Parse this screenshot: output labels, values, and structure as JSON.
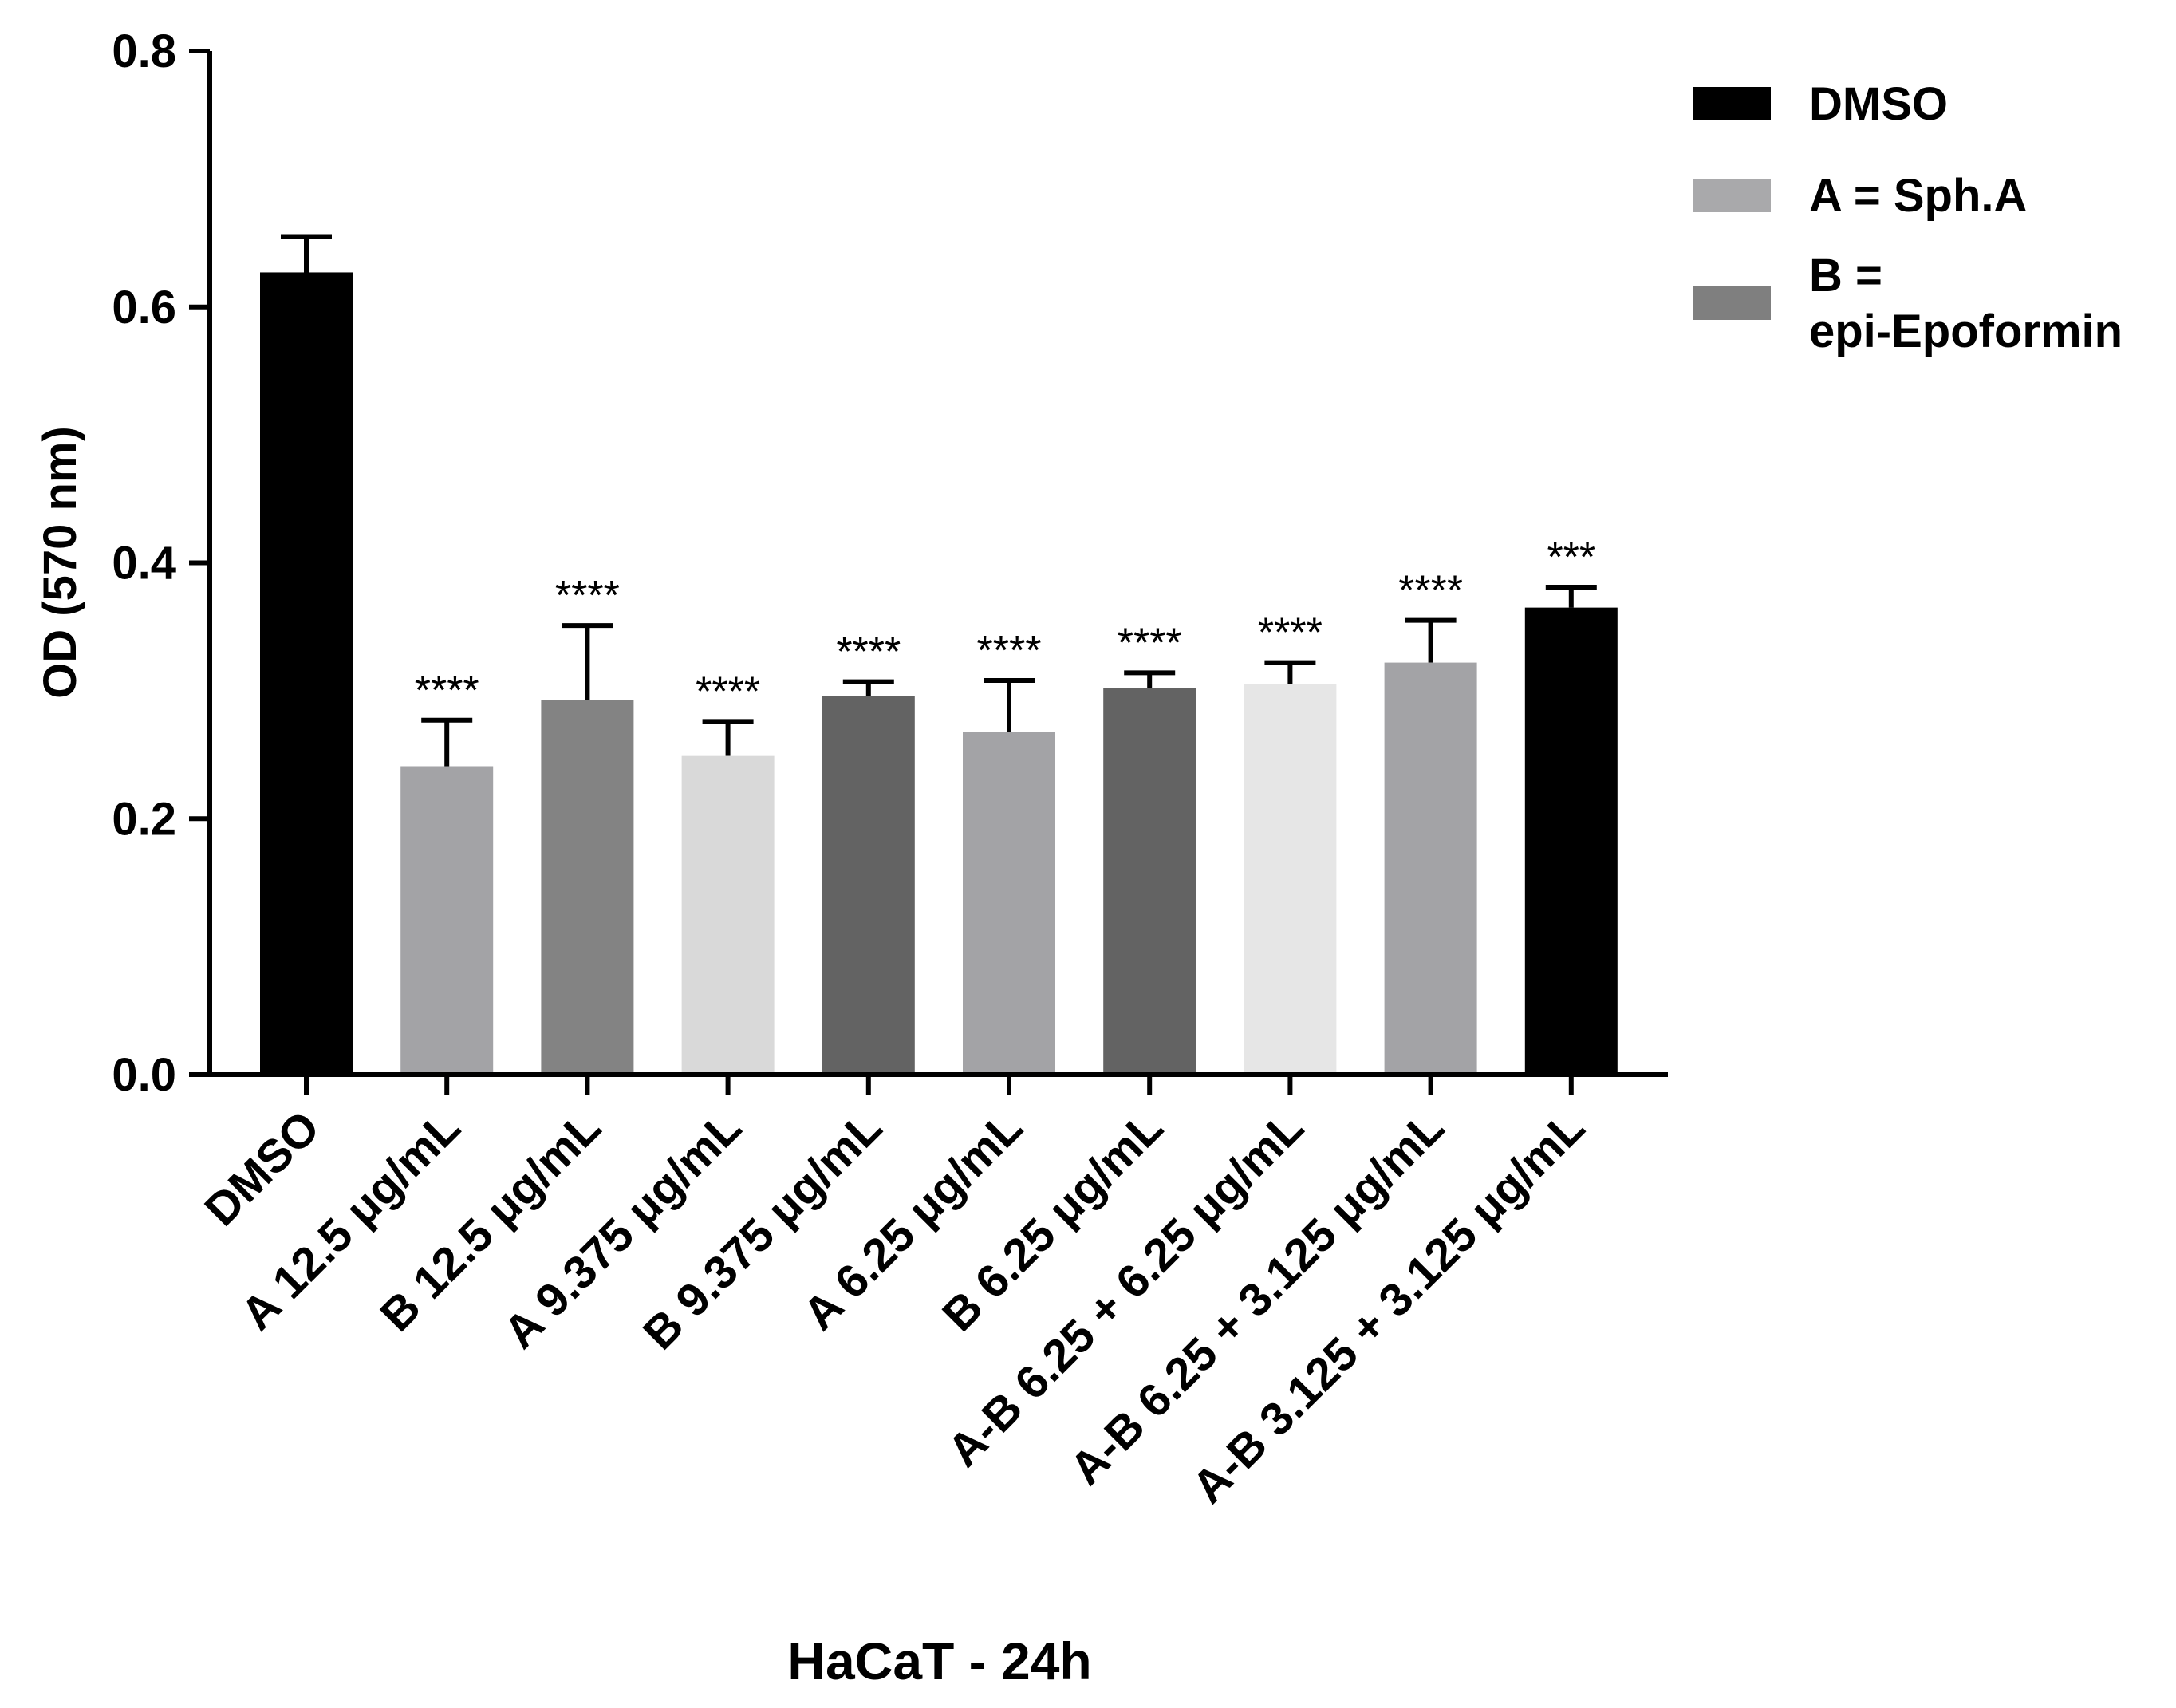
{
  "chart_data": {
    "type": "bar",
    "title": "",
    "xlabel": "HaCaT - 24h",
    "ylabel": "OD (570 nm)",
    "ylim": [
      0,
      0.8
    ],
    "yticks": [
      "0.0",
      "0.2",
      "0.4",
      "0.6",
      "0.8"
    ],
    "categories": [
      "DMSO",
      "A 12.5 μg/mL",
      "B 12.5 μg/mL",
      "A 9.375  μg/mL",
      "B 9.375 μg/mL",
      "A 6.25  μg/mL",
      "B 6.25 μg/mL",
      "A-B 6.25 + 6.25  μg/mL",
      "A-B 6.25 + 3.125  μg/mL",
      "A-B 3.125 + 3.125  μg/mL"
    ],
    "values": [
      0.627,
      0.241,
      0.293,
      0.249,
      0.296,
      0.268,
      0.302,
      0.305,
      0.322,
      0.365
    ],
    "errors": [
      0.028,
      0.036,
      0.058,
      0.027,
      0.011,
      0.04,
      0.012,
      0.017,
      0.033,
      0.016
    ],
    "significance": [
      "",
      "****",
      "****",
      "****",
      "****",
      "****",
      "****",
      "****",
      "****",
      "***"
    ],
    "colors": [
      "#000000",
      "#a3a3a6",
      "#838383",
      "#d9d9d9",
      "#636363",
      "#a3a3a6",
      "#636363",
      "#e6e6e6",
      "#a3a3a6",
      "#000000"
    ],
    "legend": [
      {
        "label_lines": [
          "DMSO"
        ],
        "color": "#000000"
      },
      {
        "label_lines": [
          "A = Sph.A"
        ],
        "color": "#a9a9ab"
      },
      {
        "label_lines": [
          "B =",
          "epi-Epoformin"
        ],
        "color": "#7f7f7f"
      }
    ],
    "legend_position": "top-right"
  }
}
